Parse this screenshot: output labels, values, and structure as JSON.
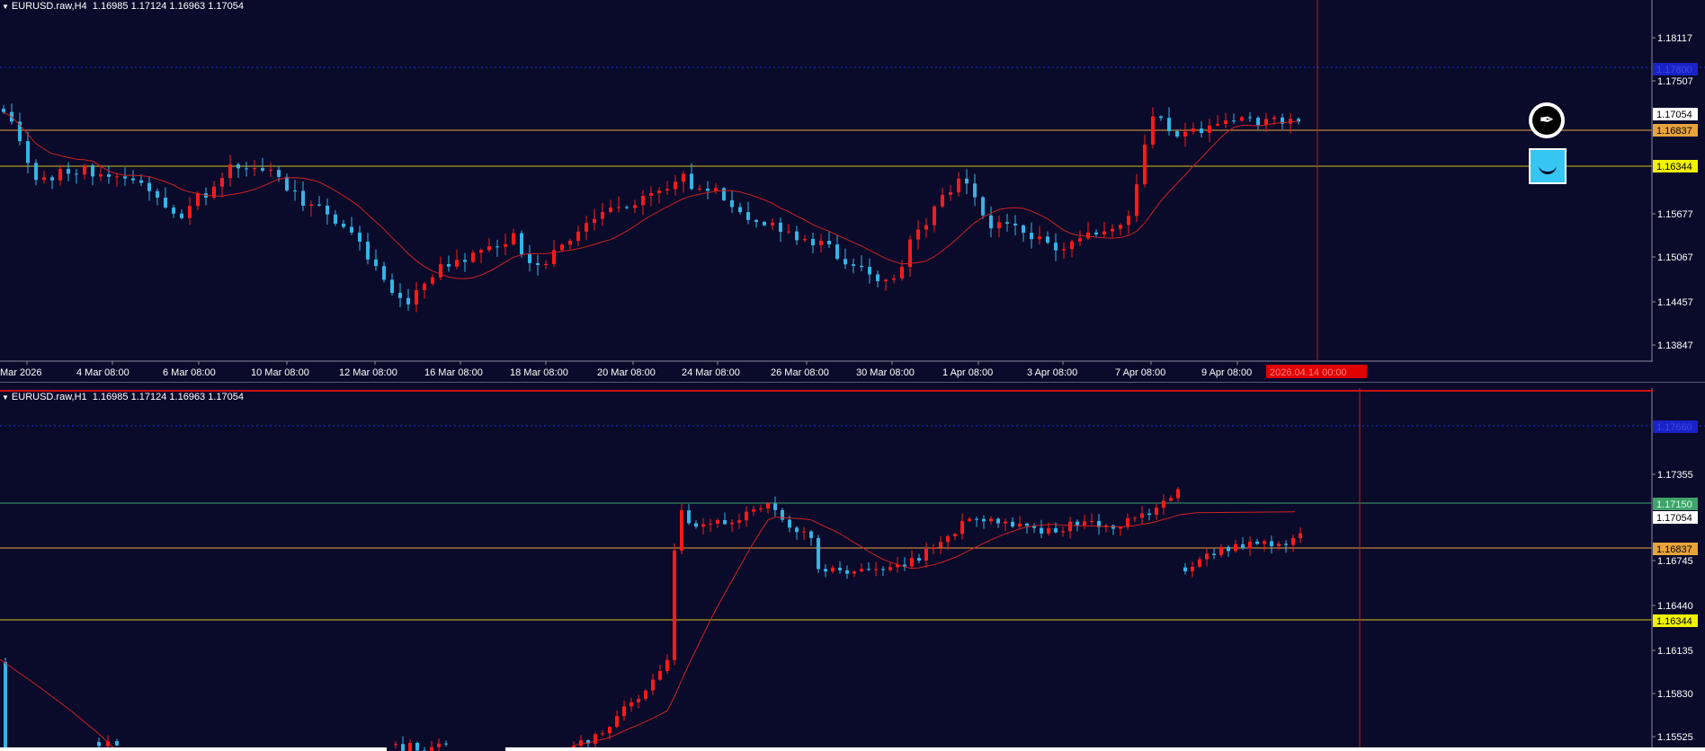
{
  "top_chart": {
    "title": "EURUSD.raw,H4  1.16985 1.17124 1.16963 1.17054",
    "price_levels": [
      "1.18117",
      "1.17507",
      "1.17054",
      "1.16837",
      "1.16344",
      "1.15677",
      "1.15067",
      "1.14457",
      "1.13847"
    ],
    "highlight_labels": {
      "blue": "1.17800",
      "white": "1.17054",
      "orange": "1.16837",
      "yellow": "1.16344"
    },
    "time_labels": [
      "Mar 2026",
      "4 Mar 08:00",
      "6 Mar 08:00",
      "10 Mar 08:00",
      "12 Mar 08:00",
      "16 Mar 08:00",
      "18 Mar 08:00",
      "20 Mar 08:00",
      "24 Mar 08:00",
      "26 Mar 08:00",
      "30 Mar 08:00",
      "1 Apr 08:00",
      "3 Apr 08:00",
      "7 Apr 08:00",
      "9 Apr 08:00"
    ],
    "cursor_time": "2026.04.14 00:00"
  },
  "bottom_chart": {
    "title": "EURUSD.raw,H1  1.16985 1.17124 1.16963 1.17054",
    "price_levels": [
      "1.17355",
      "1.17054",
      "1.16745",
      "1.16440",
      "1.16135",
      "1.15830",
      "1.15525"
    ],
    "highlight_labels": {
      "blue": "1.17660",
      "green": "1.17150",
      "white": "1.17054",
      "orange": "1.16837",
      "yellow": "1.16344"
    }
  },
  "colors": {
    "background": "#0a0a2a",
    "bull": "#ff1a1a",
    "bear": "#33b5e5",
    "ma": "#cc2222",
    "orange_line": "#e8a33a",
    "yellow_line": "#d4c21a",
    "green_line": "#3fa36a",
    "cursor": "#b82020"
  },
  "icons": [
    "pen-nib-icon",
    "smile-icon"
  ]
}
